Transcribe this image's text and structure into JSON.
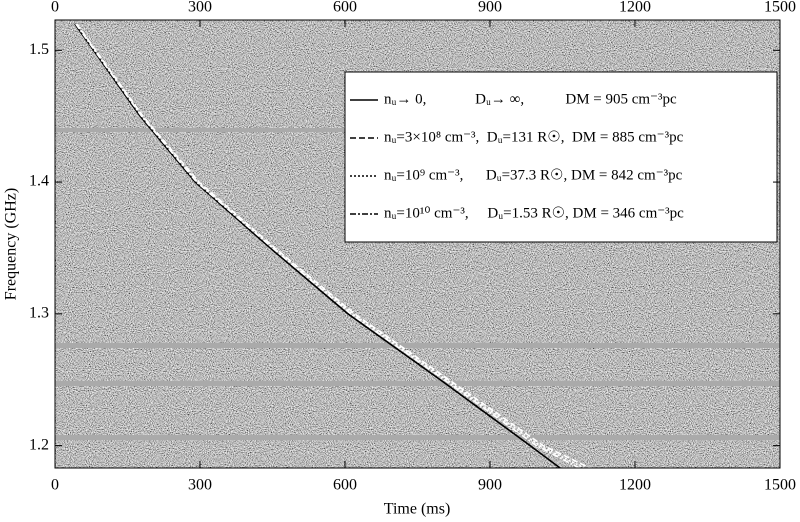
{
  "chart_data": {
    "type": "line",
    "xlabel": "Time (ms)",
    "ylabel": "Frequency (GHz)",
    "xlim": [
      0,
      1500
    ],
    "xticks": [
      0,
      300,
      600,
      900,
      1200,
      1500
    ],
    "ylim": [
      1.183,
      1.523
    ],
    "yticks": [
      1.2,
      1.3,
      1.4,
      1.5
    ],
    "series": [
      {
        "name": "nᵤ→ 0,             Dᵤ→ ∞,           DM = 905 cm⁻³pc",
        "color": "#000000",
        "dash": "none",
        "x": [
          41,
          176,
          290,
          445,
          606,
          797,
          983,
          1045
        ],
        "values": [
          1.52,
          1.45,
          1.4,
          1.35,
          1.3,
          1.25,
          1.2,
          1.183
        ]
      },
      {
        "name": "nᵤ=3×10⁸ cm⁻³,  Dᵤ=131 R☉,  DM = 885 cm⁻³pc",
        "color": "#ffffff",
        "dash": "6 3",
        "x": [
          45,
          182,
          298,
          455,
          620,
          815,
          1010,
          1107
        ],
        "values": [
          1.52,
          1.45,
          1.4,
          1.35,
          1.3,
          1.25,
          1.2,
          1.183
        ]
      },
      {
        "name": "nᵤ=10⁹ cm⁻³,      Dᵤ=37.3 R☉, DM = 842 cm⁻³pc",
        "color": "#ffffff",
        "dash": "2 2",
        "x": [
          44,
          180,
          295,
          452,
          616,
          810,
          1003,
          1095
        ],
        "values": [
          1.52,
          1.45,
          1.4,
          1.35,
          1.3,
          1.25,
          1.2,
          1.183
        ]
      },
      {
        "name": "nᵤ=10¹⁰ cm⁻³,     Dᵤ=1.53 R☉, DM = 346 cm⁻³pc",
        "color": "#ffffff",
        "dash": "6 2 2 2",
        "x": [
          43,
          179,
          293,
          450,
          612,
          805,
          996,
          1085
        ],
        "values": [
          1.52,
          1.45,
          1.4,
          1.35,
          1.3,
          1.25,
          1.2,
          1.183
        ]
      }
    ]
  }
}
